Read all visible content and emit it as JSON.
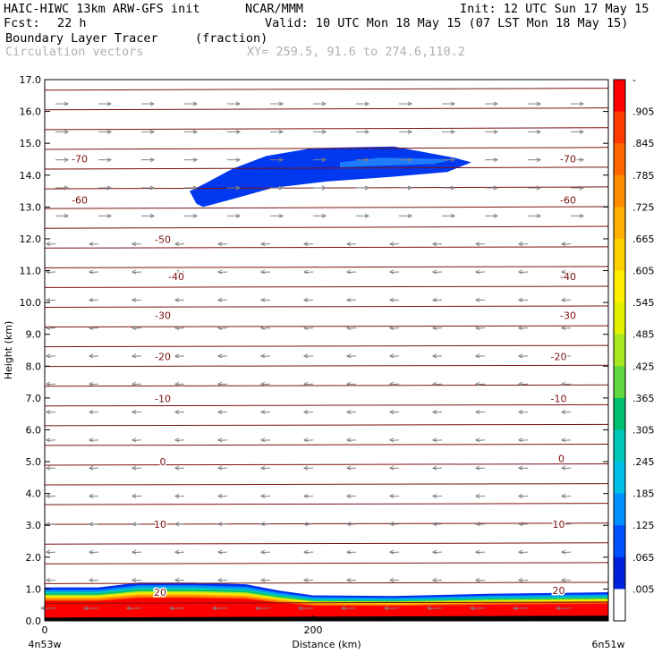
{
  "header": {
    "model": "HAIC-HIWC 13km ARW-GFS init",
    "org": "NCAR/MMM",
    "init": "Init: 12 UTC Sun 17 May 15",
    "fcst_label": "Fcst:",
    "fcst_value": "22 h",
    "valid": "Valid: 10 UTC Mon 18 May 15 (07 LST Mon 18 May 15)",
    "field": "Boundary Layer Tracer",
    "field_units": "(fraction)",
    "overlay": "Circulation vectors",
    "xy": "XY= 259.5, 91.6 to 274.6,110.2"
  },
  "chart_data": {
    "type": "heatmap",
    "xlabel": "Distance (km)",
    "ylabel": "Height (km)",
    "xlim": [
      0,
      420
    ],
    "ylim": [
      0,
      17
    ],
    "x_ticks": [
      0,
      200
    ],
    "x_tick_labels": [
      "0",
      "200"
    ],
    "x_end_labels": [
      "4n53w",
      "6n51w"
    ],
    "y_ticks": [
      0,
      1,
      2,
      3,
      4,
      5,
      6,
      7,
      8,
      9,
      10,
      11,
      12,
      13,
      14,
      15,
      16,
      17
    ],
    "y_tick_labels": [
      "0.0",
      "1.0",
      "2.0",
      "3.0",
      "4.0",
      "5.0",
      "6.0",
      "7.0",
      "8.0",
      "9.0",
      "10.0",
      "11.0",
      "12.0",
      "13.0",
      "14.0",
      "15.0",
      "16.0",
      "17.0"
    ],
    "colorbar": {
      "labels": [
        "-",
        ".905",
        ".845",
        ".785",
        ".725",
        ".665",
        ".605",
        ".545",
        ".485",
        ".425",
        ".365",
        ".305",
        ".245",
        ".185",
        ".125",
        ".065",
        ".005"
      ],
      "colors": [
        "#ff0000",
        "#ff3a00",
        "#ff6600",
        "#ff8c00",
        "#ffb000",
        "#ffd000",
        "#ffee00",
        "#e0f000",
        "#a8e820",
        "#60d840",
        "#00c070",
        "#00c8b8",
        "#00c0e8",
        "#0090ff",
        "#0050ff",
        "#0020e0",
        "#ffffff"
      ]
    },
    "contour_labels": [
      {
        "value": "-70",
        "x": 26,
        "y": 14.52
      },
      {
        "value": "-70",
        "x": 390,
        "y": 14.52
      },
      {
        "value": "-60",
        "x": 26,
        "y": 13.22
      },
      {
        "value": "-60",
        "x": 390,
        "y": 13.22
      },
      {
        "value": "-50",
        "x": 88,
        "y": 11.98
      },
      {
        "value": "-40",
        "x": 98,
        "y": 10.82
      },
      {
        "value": "-40",
        "x": 390,
        "y": 10.82
      },
      {
        "value": "-30",
        "x": 88,
        "y": 9.6
      },
      {
        "value": "-30",
        "x": 390,
        "y": 9.6
      },
      {
        "value": "-20",
        "x": 88,
        "y": 8.3
      },
      {
        "value": "-20",
        "x": 383,
        "y": 8.3
      },
      {
        "value": "-10",
        "x": 88,
        "y": 6.98
      },
      {
        "value": "-10",
        "x": 383,
        "y": 6.98
      },
      {
        "value": "0",
        "x": 88,
        "y": 5.0
      },
      {
        "value": "0",
        "x": 385,
        "y": 5.1
      },
      {
        "value": "10",
        "x": 86,
        "y": 3.03
      },
      {
        "value": "10",
        "x": 383,
        "y": 3.03
      },
      {
        "value": "20",
        "x": 86,
        "y": 0.9
      },
      {
        "value": "20",
        "x": 383,
        "y": 0.95
      }
    ],
    "tracer_aloft_km": [
      [
        113,
        13.1
      ],
      [
        108,
        13.5
      ],
      [
        120,
        13.75
      ],
      [
        140,
        14.2
      ],
      [
        165,
        14.6
      ],
      [
        200,
        14.85
      ],
      [
        260,
        14.9
      ],
      [
        305,
        14.55
      ],
      [
        318,
        14.4
      ],
      [
        300,
        14.1
      ],
      [
        260,
        13.95
      ],
      [
        210,
        13.8
      ],
      [
        170,
        13.6
      ],
      [
        140,
        13.25
      ],
      [
        118,
        13.0
      ]
    ],
    "boundary_layer_top_km": [
      [
        0,
        1.05
      ],
      [
        40,
        1.05
      ],
      [
        70,
        1.2
      ],
      [
        110,
        1.2
      ],
      [
        150,
        1.15
      ],
      [
        175,
        0.95
      ],
      [
        200,
        0.8
      ],
      [
        260,
        0.78
      ],
      [
        330,
        0.85
      ],
      [
        420,
        0.9
      ]
    ],
    "wind_vectors": "circulation vectors: westerly aloft above ~12.5 km, easterly below"
  }
}
